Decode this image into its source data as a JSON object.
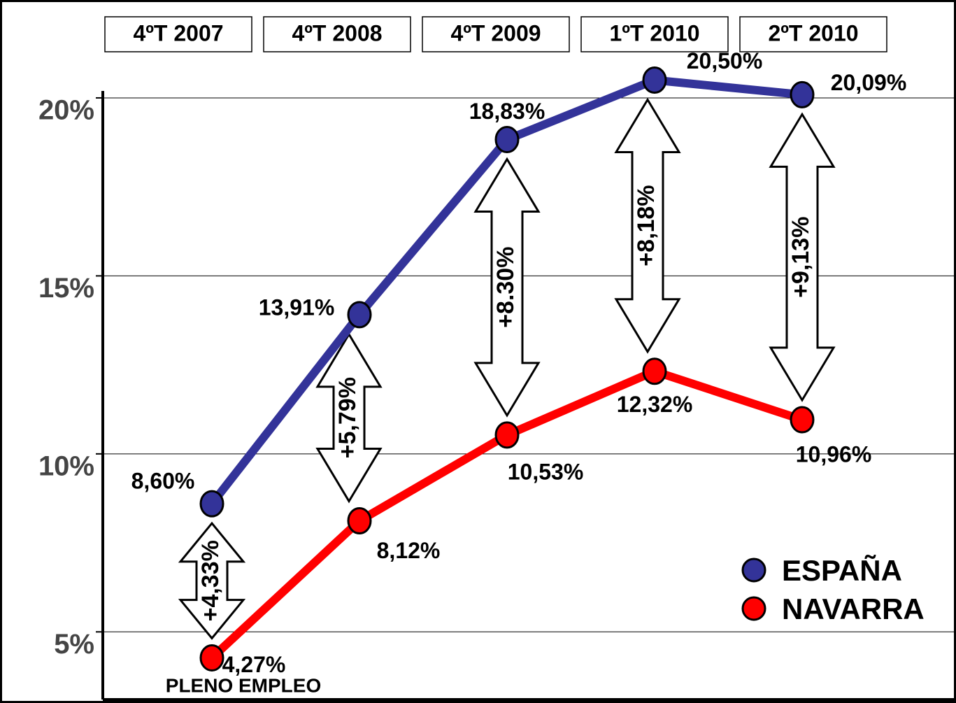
{
  "chart_data": {
    "type": "line",
    "categories": [
      "4ºT 2007",
      "4ºT 2008",
      "4ºT 2009",
      "1ºT 2010",
      "2ºT 2010"
    ],
    "series": [
      {
        "name": "ESPAÑA",
        "color": "#333399",
        "values": [
          8.6,
          13.91,
          18.83,
          20.5,
          20.09
        ],
        "value_labels": [
          "8,60%",
          "13,91%",
          "18,83%",
          "20,50%",
          "20,09%"
        ]
      },
      {
        "name": "NAVARRA",
        "color": "#ff0000",
        "values": [
          4.27,
          8.12,
          10.53,
          12.32,
          10.96
        ],
        "value_labels": [
          "4,27%",
          "8,12%",
          "10,53%",
          "12,32%",
          "10,96%"
        ]
      }
    ],
    "differences": [
      4.33,
      5.79,
      8.3,
      8.18,
      9.13
    ],
    "difference_labels": [
      "+4,33%",
      "+5,79%",
      "+8.30%",
      "+8,18%",
      "+9,13%"
    ],
    "annotation": "PLENO EMPLEO",
    "ylim": [
      3.1,
      22.75
    ],
    "yticks": [
      {
        "value": 5,
        "label": "5%"
      },
      {
        "value": 10,
        "label": "10%"
      },
      {
        "value": 15,
        "label": "15%"
      },
      {
        "value": 20,
        "label": "20%"
      }
    ],
    "grid": true,
    "legend": "lower right"
  }
}
